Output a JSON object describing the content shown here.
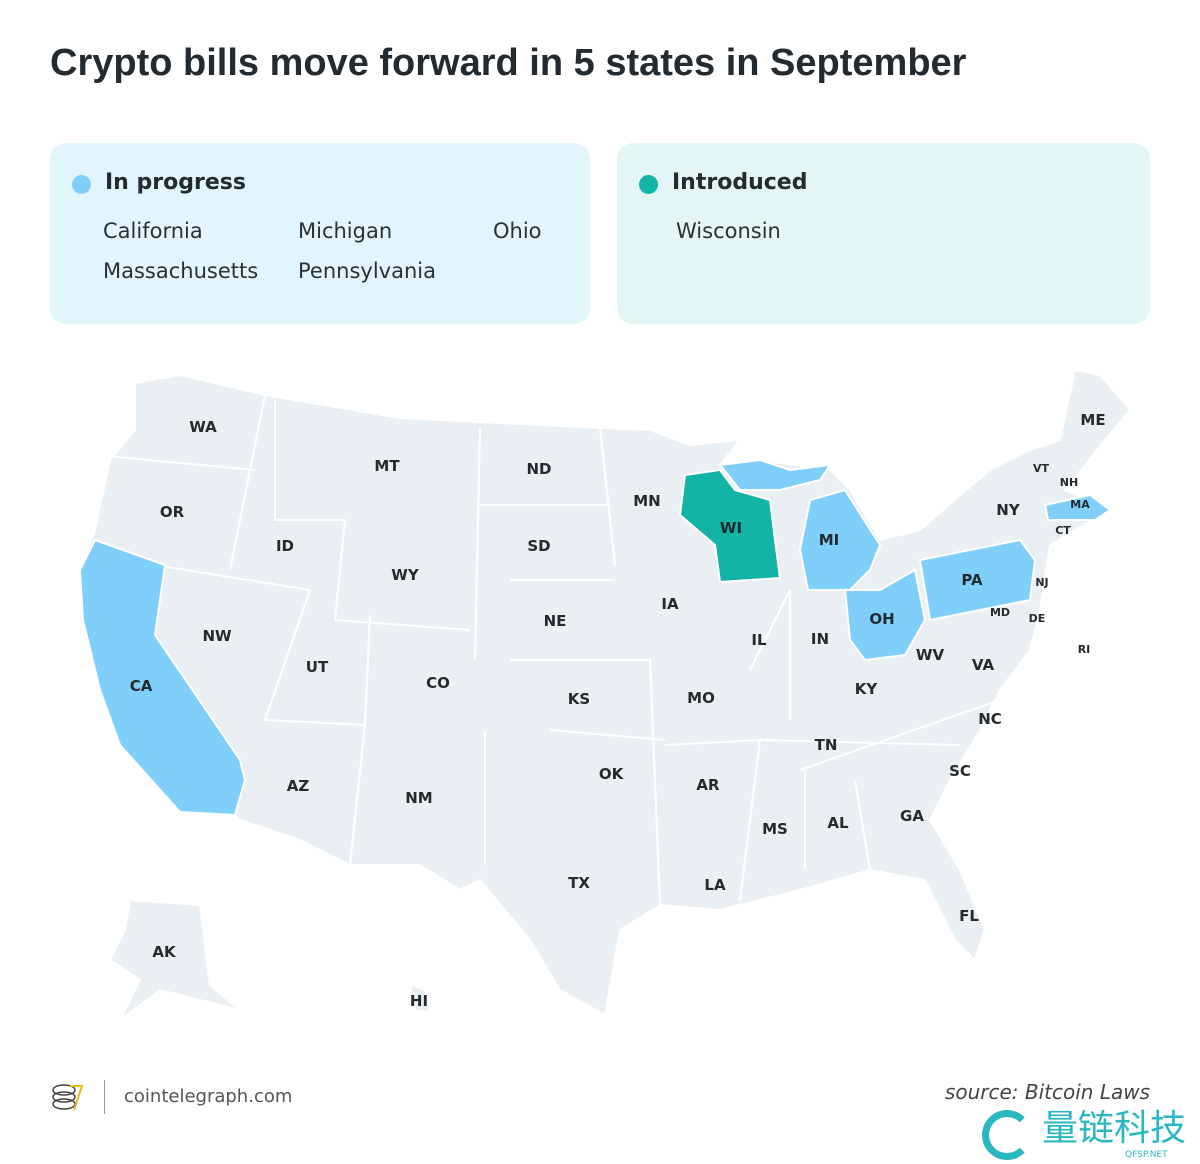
{
  "title": "Crypto bills move forward in 5 states in September",
  "colors": {
    "in_progress": "#7fcffa",
    "introduced": "#13b3a6",
    "default_state": "#e9eff2"
  },
  "legend": [
    {
      "label": "In progress",
      "states": [
        "California",
        "Michigan",
        "Ohio",
        "Massachusetts",
        "Pennsylvania"
      ]
    },
    {
      "label": "Introduced",
      "states": [
        "Wisconsin"
      ]
    }
  ],
  "map": {
    "labels": [
      "WA",
      "OR",
      "CA",
      "ID",
      "NW",
      "MT",
      "WY",
      "UT",
      "AZ",
      "CO",
      "NM",
      "ND",
      "SD",
      "NE",
      "KS",
      "OK",
      "TX",
      "MN",
      "IA",
      "MO",
      "AR",
      "LA",
      "WI",
      "IL",
      "MI",
      "IN",
      "OH",
      "KY",
      "TN",
      "MS",
      "AL",
      "GA",
      "FL",
      "SC",
      "NC",
      "VA",
      "WV",
      "PA",
      "NY",
      "MD",
      "DE",
      "NJ",
      "CT",
      "RI",
      "MA",
      "VT",
      "NH",
      "ME",
      "AK",
      "HI"
    ]
  },
  "footer": {
    "brand": "cointelegraph.com",
    "source": "source: Bitcoin Laws",
    "watermark": "量链科技",
    "watermark_sub": "QFSP.NET"
  }
}
